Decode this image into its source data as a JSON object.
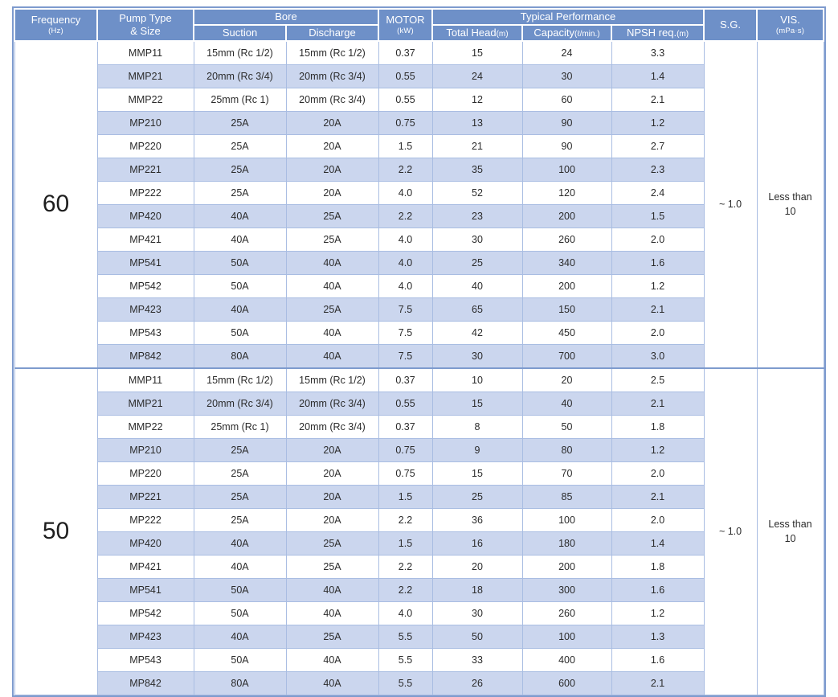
{
  "colors": {
    "header_bg": "#6e90c8",
    "header_text": "#ffffff",
    "stripe_bg": "#cbd6ee",
    "grid_line": "#a9bde2",
    "section_border": "#7e9bce",
    "body_text": "#2b2b2b"
  },
  "headers": {
    "frequency": "Frequency",
    "frequency_unit": "(Hz)",
    "pump_type_line1": "Pump Type",
    "pump_type_line2": "& Size",
    "bore": "Bore",
    "suction": "Suction",
    "discharge": "Discharge",
    "motor": "MOTOR",
    "motor_unit": "(kW)",
    "typical_performance": "Typical Performance",
    "total_head": "Total Head",
    "total_head_unit": "(m)",
    "capacity": "Capacity",
    "capacity_unit": "(ℓ/min.)",
    "npsh": "NPSH req.",
    "npsh_unit": "(m)",
    "sg": "S.G.",
    "vis": "VIS.",
    "vis_unit": "(mPa·s)"
  },
  "sections": [
    {
      "frequency": "60",
      "sg": "~ 1.0",
      "vis_line1": "Less than",
      "vis_line2": "10",
      "rows": [
        [
          "MMP11",
          "15mm (Rc 1/2)",
          "15mm (Rc 1/2)",
          "0.37",
          "15",
          "24",
          "3.3"
        ],
        [
          "MMP21",
          "20mm (Rc 3/4)",
          "20mm (Rc 3/4)",
          "0.55",
          "24",
          "30",
          "1.4"
        ],
        [
          "MMP22",
          "25mm (Rc 1)",
          "20mm (Rc 3/4)",
          "0.55",
          "12",
          "60",
          "2.1"
        ],
        [
          "MP210",
          "25A",
          "20A",
          "0.75",
          "13",
          "90",
          "1.2"
        ],
        [
          "MP220",
          "25A",
          "20A",
          "1.5",
          "21",
          "90",
          "2.7"
        ],
        [
          "MP221",
          "25A",
          "20A",
          "2.2",
          "35",
          "100",
          "2.3"
        ],
        [
          "MP222",
          "25A",
          "20A",
          "4.0",
          "52",
          "120",
          "2.4"
        ],
        [
          "MP420",
          "40A",
          "25A",
          "2.2",
          "23",
          "200",
          "1.5"
        ],
        [
          "MP421",
          "40A",
          "25A",
          "4.0",
          "30",
          "260",
          "2.0"
        ],
        [
          "MP541",
          "50A",
          "40A",
          "4.0",
          "25",
          "340",
          "1.6"
        ],
        [
          "MP542",
          "50A",
          "40A",
          "4.0",
          "40",
          "200",
          "1.2"
        ],
        [
          "MP423",
          "40A",
          "25A",
          "7.5",
          "65",
          "150",
          "2.1"
        ],
        [
          "MP543",
          "50A",
          "40A",
          "7.5",
          "42",
          "450",
          "2.0"
        ],
        [
          "MP842",
          "80A",
          "40A",
          "7.5",
          "30",
          "700",
          "3.0"
        ]
      ]
    },
    {
      "frequency": "50",
      "sg": "~ 1.0",
      "vis_line1": "Less than",
      "vis_line2": "10",
      "rows": [
        [
          "MMP11",
          "15mm (Rc 1/2)",
          "15mm (Rc 1/2)",
          "0.37",
          "10",
          "20",
          "2.5"
        ],
        [
          "MMP21",
          "20mm (Rc 3/4)",
          "20mm (Rc 3/4)",
          "0.55",
          "15",
          "40",
          "2.1"
        ],
        [
          "MMP22",
          "25mm (Rc 1)",
          "20mm (Rc 3/4)",
          "0.37",
          "8",
          "50",
          "1.8"
        ],
        [
          "MP210",
          "25A",
          "20A",
          "0.75",
          "9",
          "80",
          "1.2"
        ],
        [
          "MP220",
          "25A",
          "20A",
          "0.75",
          "15",
          "70",
          "2.0"
        ],
        [
          "MP221",
          "25A",
          "20A",
          "1.5",
          "25",
          "85",
          "2.1"
        ],
        [
          "MP222",
          "25A",
          "20A",
          "2.2",
          "36",
          "100",
          "2.0"
        ],
        [
          "MP420",
          "40A",
          "25A",
          "1.5",
          "16",
          "180",
          "1.4"
        ],
        [
          "MP421",
          "40A",
          "25A",
          "2.2",
          "20",
          "200",
          "1.8"
        ],
        [
          "MP541",
          "50A",
          "40A",
          "2.2",
          "18",
          "300",
          "1.6"
        ],
        [
          "MP542",
          "50A",
          "40A",
          "4.0",
          "30",
          "260",
          "1.2"
        ],
        [
          "MP423",
          "40A",
          "25A",
          "5.5",
          "50",
          "100",
          "1.3"
        ],
        [
          "MP543",
          "50A",
          "40A",
          "5.5",
          "33",
          "400",
          "1.6"
        ],
        [
          "MP842",
          "80A",
          "40A",
          "5.5",
          "26",
          "600",
          "2.1"
        ]
      ]
    }
  ]
}
